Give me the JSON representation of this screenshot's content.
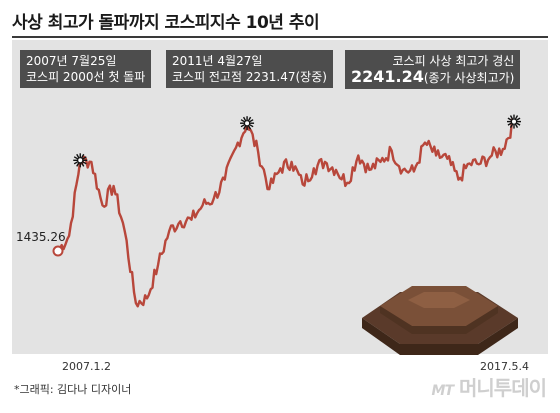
{
  "chart_data": {
    "type": "line",
    "title": "사상 최고가 돌파까지 코스피지수 10년 추이",
    "x_start_label": "2007.1.2",
    "x_end_label": "2017.5.4",
    "start_value_label": "1435.26",
    "x": [
      "2007-01",
      "2007-04",
      "2007-07",
      "2007-10",
      "2008-01",
      "2008-04",
      "2008-07",
      "2008-10",
      "2009-01",
      "2009-04",
      "2009-07",
      "2009-10",
      "2010-01",
      "2010-04",
      "2010-07",
      "2010-10",
      "2011-01",
      "2011-04",
      "2011-07",
      "2011-10",
      "2012-01",
      "2012-04",
      "2012-07",
      "2012-10",
      "2013-01",
      "2013-04",
      "2013-07",
      "2013-10",
      "2014-01",
      "2014-04",
      "2014-07",
      "2014-10",
      "2015-01",
      "2015-04",
      "2015-07",
      "2015-10",
      "2016-01",
      "2016-04",
      "2016-07",
      "2016-10",
      "2017-01",
      "2017-05"
    ],
    "values": [
      1435,
      1530,
      2000,
      1990,
      1720,
      1840,
      1560,
      1110,
      1140,
      1350,
      1560,
      1620,
      1630,
      1720,
      1760,
      1880,
      2080,
      2231,
      2050,
      1820,
      1950,
      1990,
      1850,
      1950,
      1990,
      1940,
      1860,
      2030,
      1940,
      1990,
      2060,
      1940,
      1930,
      2110,
      2030,
      2010,
      1880,
      1980,
      1980,
      2030,
      2070,
      2241
    ],
    "ylim": [
      850,
      2500
    ],
    "line_color": "#b8473b",
    "annotations": [
      {
        "date": "2007년 7월25일",
        "text": "코스피 2000선 첫 돌파"
      },
      {
        "date": "2011년 4월27일",
        "text": "코스피 전고점 2231.47(장중)"
      },
      {
        "date": "코스피 사상 최고가 경신",
        "value": "2241.24",
        "text": "(종가 사상최고가)"
      }
    ]
  },
  "footer": {
    "credit": "*그래픽: 김다나 디자이너",
    "logo_mt": "MT",
    "logo_text": "머니투데이"
  }
}
